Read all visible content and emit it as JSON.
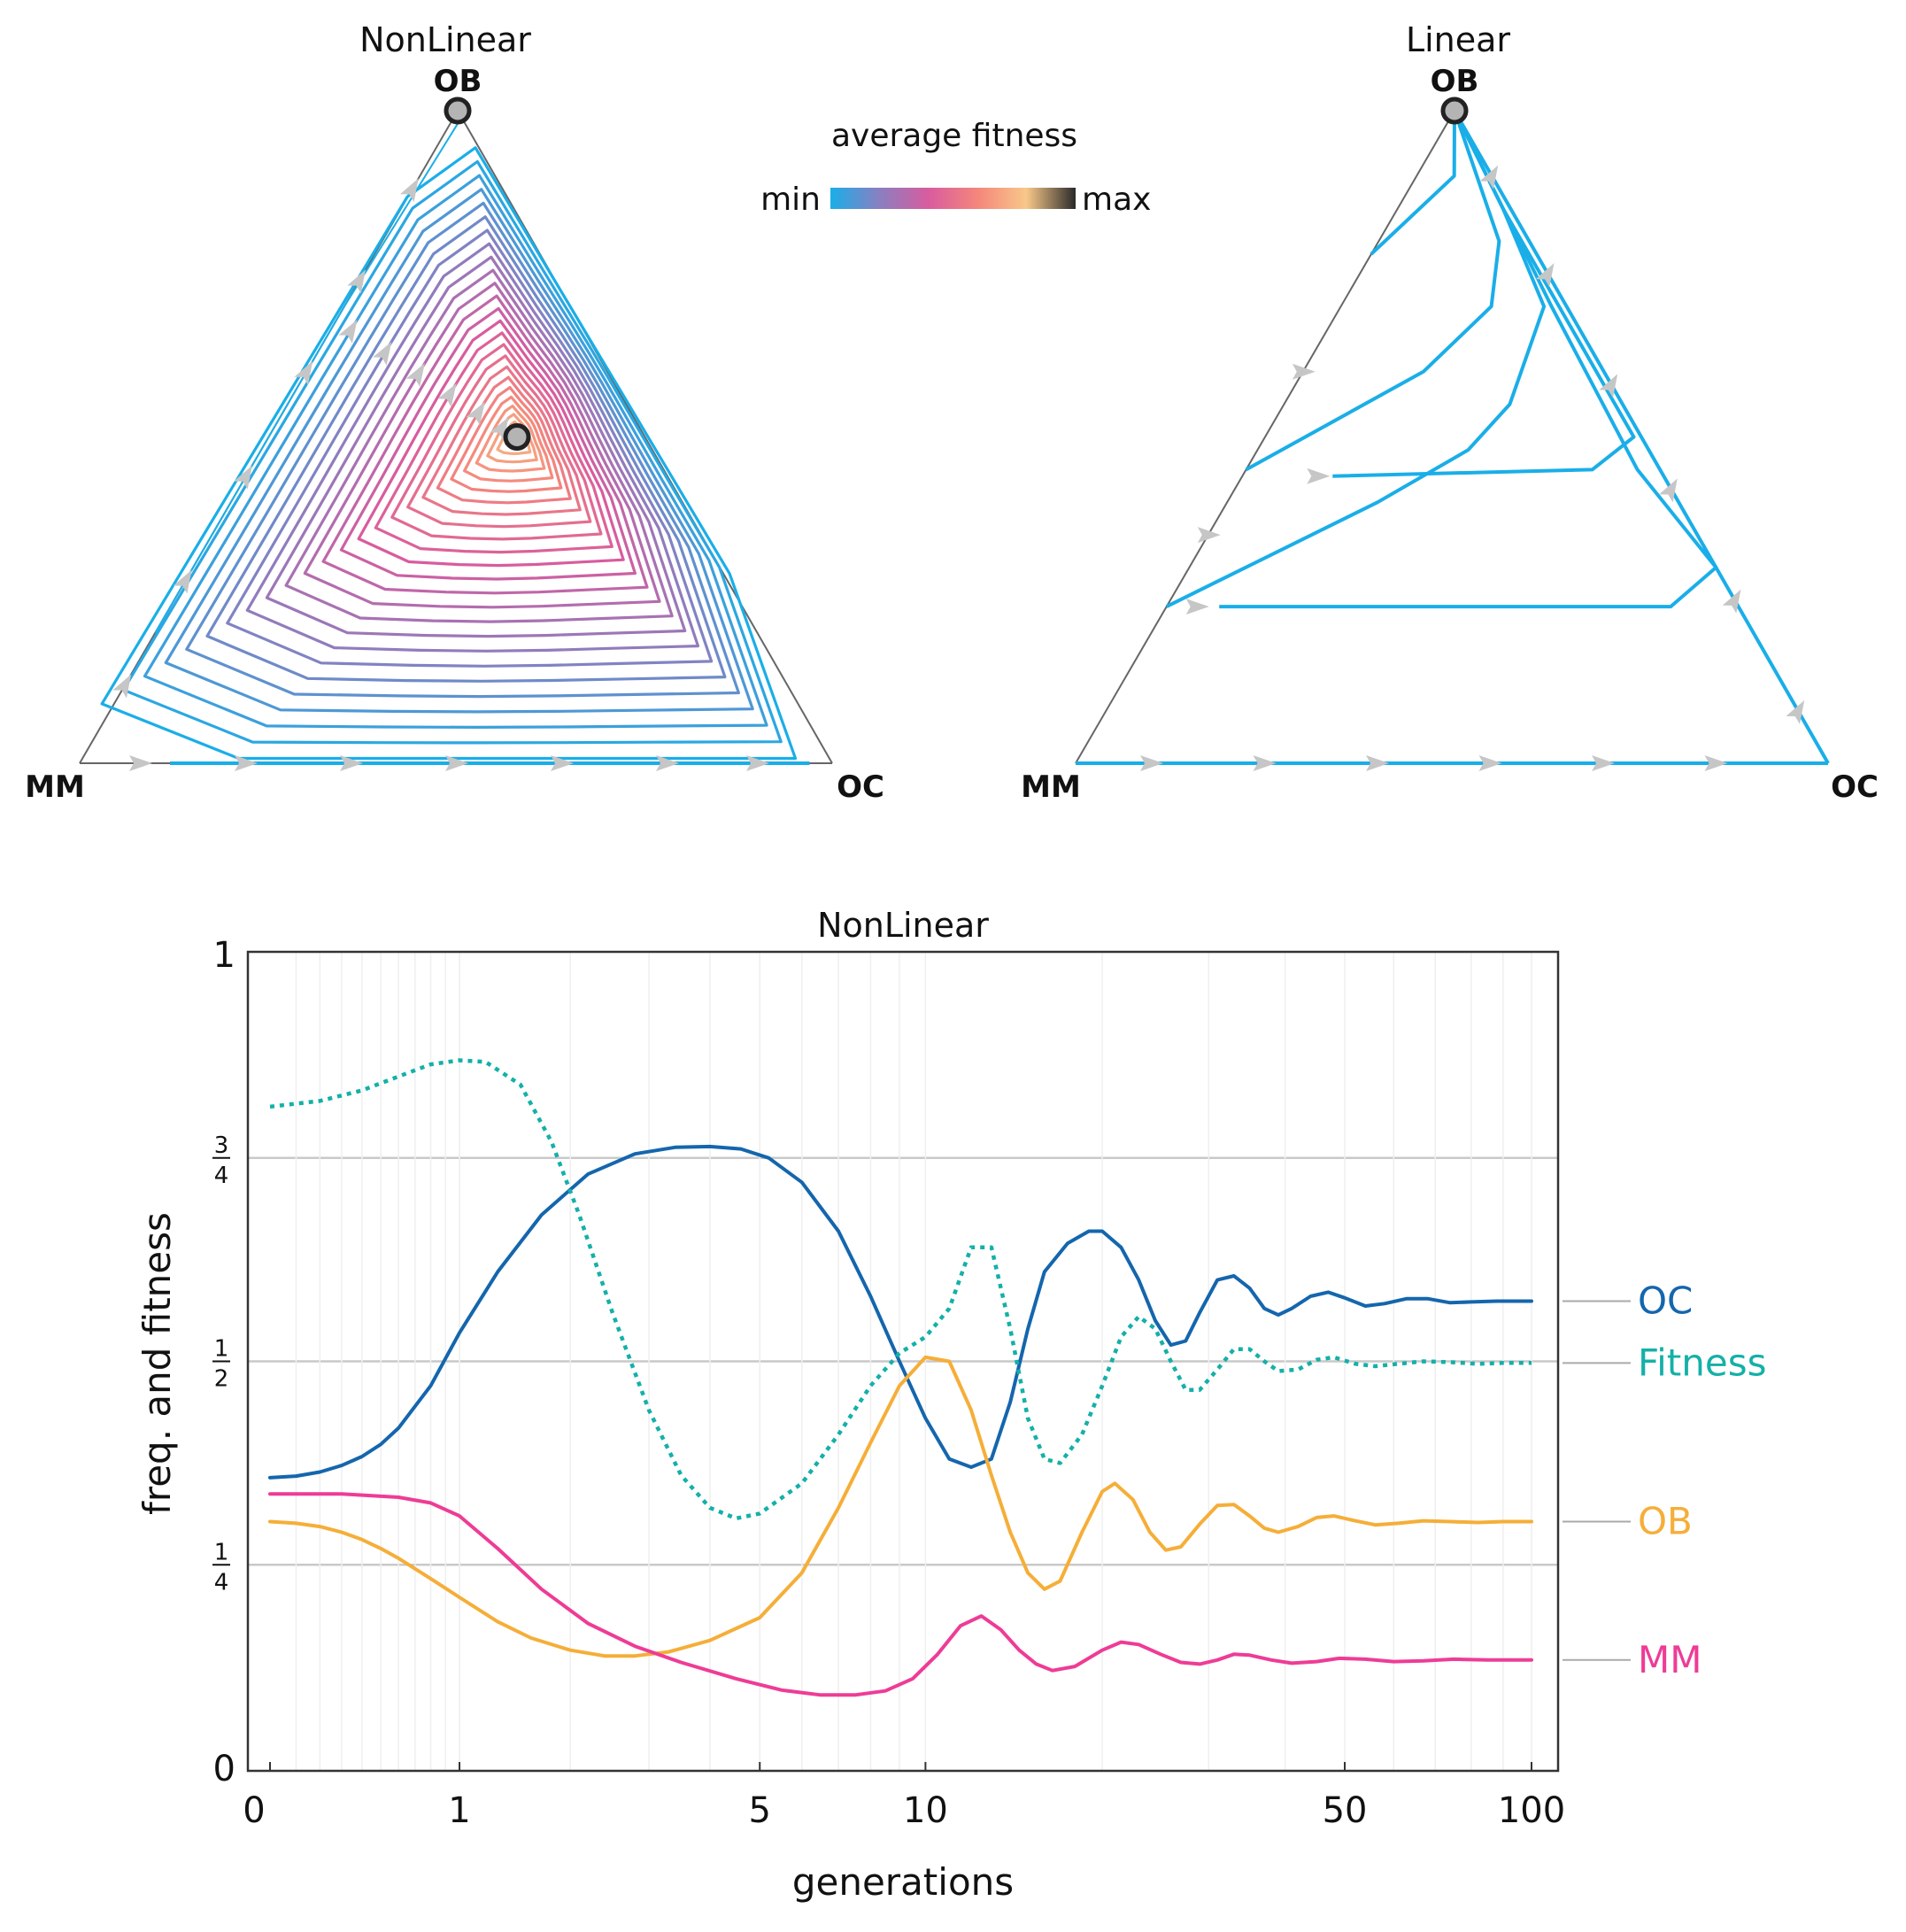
{
  "colorbar": {
    "title": "average fitness",
    "min_label": "min",
    "max_label": "max",
    "stops": [
      "#1aaee8",
      "#8a7fc0",
      "#d85c9e",
      "#f4867c",
      "#f8c889",
      "#2a2a2a"
    ]
  },
  "nonlinear_simplex": {
    "title": "NonLinear",
    "top_vertex": "OB",
    "left_vertex": "MM",
    "right_vertex": "OC",
    "interior_equilibrium": {
      "OB": 0.5,
      "OC": 0.33,
      "MM": 0.17
    }
  },
  "linear_simplex": {
    "title": "Linear",
    "top_vertex": "OB",
    "left_vertex": "MM",
    "right_vertex": "OC"
  },
  "chart_data": {
    "type": "line",
    "title": "NonLinear",
    "xlabel": "generations",
    "ylabel": "freq. and fitness",
    "xscale": "log(1+x)",
    "xlim": [
      0,
      100
    ],
    "ylim": [
      0,
      1
    ],
    "x_ticks": [
      "0",
      "1",
      "5",
      "10",
      "50",
      "100"
    ],
    "x_tick_values": [
      0,
      1,
      5,
      10,
      50,
      100
    ],
    "y_ticks": [
      {
        "value": 0,
        "label": "0"
      },
      {
        "value": 1,
        "label": "1"
      }
    ],
    "y_fraction_ticks": [
      {
        "value": 0.25,
        "num": "1",
        "den": "4"
      },
      {
        "value": 0.5,
        "num": "1",
        "den": "2"
      },
      {
        "value": 0.75,
        "num": "3",
        "den": "4"
      }
    ],
    "gridlines_y": [
      0.25,
      0.5,
      0.75
    ],
    "series": [
      {
        "name": "OC",
        "color": "#1466ad",
        "style": "solid",
        "points": [
          [
            0,
            0.357
          ],
          [
            0.1,
            0.359
          ],
          [
            0.2,
            0.364
          ],
          [
            0.3,
            0.372
          ],
          [
            0.4,
            0.383
          ],
          [
            0.5,
            0.398
          ],
          [
            0.6,
            0.418
          ],
          [
            0.8,
            0.47
          ],
          [
            1.0,
            0.535
          ],
          [
            1.3,
            0.61
          ],
          [
            1.7,
            0.68
          ],
          [
            2.2,
            0.73
          ],
          [
            2.8,
            0.755
          ],
          [
            3.4,
            0.763
          ],
          [
            4.0,
            0.764
          ],
          [
            4.6,
            0.761
          ],
          [
            5.2,
            0.75
          ],
          [
            6.0,
            0.72
          ],
          [
            7.0,
            0.66
          ],
          [
            8.0,
            0.58
          ],
          [
            9.0,
            0.5
          ],
          [
            10.0,
            0.43
          ],
          [
            11.0,
            0.38
          ],
          [
            12.0,
            0.37
          ],
          [
            13.0,
            0.38
          ],
          [
            14.0,
            0.45
          ],
          [
            15.0,
            0.54
          ],
          [
            16.0,
            0.61
          ],
          [
            17.5,
            0.645
          ],
          [
            19.0,
            0.66
          ],
          [
            20.0,
            0.66
          ],
          [
            21.5,
            0.64
          ],
          [
            23.0,
            0.6
          ],
          [
            24.5,
            0.55
          ],
          [
            26.0,
            0.52
          ],
          [
            27.5,
            0.525
          ],
          [
            29.0,
            0.56
          ],
          [
            31.0,
            0.6
          ],
          [
            33.0,
            0.605
          ],
          [
            35.0,
            0.59
          ],
          [
            37.0,
            0.565
          ],
          [
            39.0,
            0.557
          ],
          [
            41.0,
            0.565
          ],
          [
            44.0,
            0.58
          ],
          [
            47.0,
            0.585
          ],
          [
            50.0,
            0.578
          ],
          [
            54.0,
            0.568
          ],
          [
            58.0,
            0.571
          ],
          [
            63.0,
            0.577
          ],
          [
            68.0,
            0.577
          ],
          [
            74.0,
            0.572
          ],
          [
            80.0,
            0.573
          ],
          [
            88.0,
            0.574
          ],
          [
            100.0,
            0.574
          ]
        ]
      },
      {
        "name": "Fitness",
        "color": "#14b0a8",
        "style": "dotted",
        "points": [
          [
            0,
            0.813
          ],
          [
            0.2,
            0.82
          ],
          [
            0.4,
            0.833
          ],
          [
            0.6,
            0.85
          ],
          [
            0.8,
            0.865
          ],
          [
            1.0,
            0.87
          ],
          [
            1.2,
            0.868
          ],
          [
            1.5,
            0.84
          ],
          [
            1.8,
            0.77
          ],
          [
            2.1,
            0.68
          ],
          [
            2.5,
            0.56
          ],
          [
            3.0,
            0.44
          ],
          [
            3.5,
            0.36
          ],
          [
            4.0,
            0.32
          ],
          [
            4.5,
            0.307
          ],
          [
            5.0,
            0.313
          ],
          [
            6.0,
            0.35
          ],
          [
            7.0,
            0.41
          ],
          [
            8.0,
            0.47
          ],
          [
            9.0,
            0.51
          ],
          [
            10.0,
            0.53
          ],
          [
            11.0,
            0.565
          ],
          [
            12.0,
            0.64
          ],
          [
            13.0,
            0.64
          ],
          [
            14.0,
            0.54
          ],
          [
            15.0,
            0.43
          ],
          [
            16.0,
            0.38
          ],
          [
            17.0,
            0.375
          ],
          [
            18.5,
            0.41
          ],
          [
            20.0,
            0.47
          ],
          [
            21.5,
            0.53
          ],
          [
            23.0,
            0.555
          ],
          [
            24.5,
            0.54
          ],
          [
            26.0,
            0.5
          ],
          [
            27.5,
            0.465
          ],
          [
            29.0,
            0.465
          ],
          [
            31.0,
            0.49
          ],
          [
            33.0,
            0.515
          ],
          [
            35.0,
            0.515
          ],
          [
            37.0,
            0.5
          ],
          [
            39.0,
            0.488
          ],
          [
            42.0,
            0.49
          ],
          [
            45.0,
            0.502
          ],
          [
            48.0,
            0.505
          ],
          [
            52.0,
            0.497
          ],
          [
            56.0,
            0.494
          ],
          [
            61.0,
            0.497
          ],
          [
            67.0,
            0.5
          ],
          [
            74.0,
            0.499
          ],
          [
            82.0,
            0.497
          ],
          [
            90.0,
            0.498
          ],
          [
            100.0,
            0.498
          ]
        ]
      },
      {
        "name": "OB",
        "color": "#f5ae38",
        "style": "solid",
        "points": [
          [
            0,
            0.303
          ],
          [
            0.1,
            0.301
          ],
          [
            0.2,
            0.297
          ],
          [
            0.3,
            0.29
          ],
          [
            0.4,
            0.281
          ],
          [
            0.5,
            0.27
          ],
          [
            0.6,
            0.258
          ],
          [
            0.8,
            0.233
          ],
          [
            1.0,
            0.21
          ],
          [
            1.3,
            0.18
          ],
          [
            1.6,
            0.16
          ],
          [
            2.0,
            0.145
          ],
          [
            2.4,
            0.138
          ],
          [
            2.8,
            0.138
          ],
          [
            3.3,
            0.143
          ],
          [
            4.0,
            0.157
          ],
          [
            5.0,
            0.185
          ],
          [
            6.0,
            0.24
          ],
          [
            7.0,
            0.32
          ],
          [
            8.0,
            0.4
          ],
          [
            9.0,
            0.47
          ],
          [
            10.0,
            0.505
          ],
          [
            11.0,
            0.5
          ],
          [
            12.0,
            0.44
          ],
          [
            13.0,
            0.36
          ],
          [
            14.0,
            0.29
          ],
          [
            15.0,
            0.24
          ],
          [
            16.0,
            0.22
          ],
          [
            17.0,
            0.23
          ],
          [
            18.5,
            0.29
          ],
          [
            20.0,
            0.34
          ],
          [
            21.0,
            0.35
          ],
          [
            22.5,
            0.33
          ],
          [
            24.0,
            0.29
          ],
          [
            25.5,
            0.268
          ],
          [
            27.0,
            0.272
          ],
          [
            29.0,
            0.3
          ],
          [
            31.0,
            0.323
          ],
          [
            33.0,
            0.324
          ],
          [
            35.0,
            0.31
          ],
          [
            37.0,
            0.295
          ],
          [
            39.0,
            0.29
          ],
          [
            42.0,
            0.297
          ],
          [
            45.0,
            0.308
          ],
          [
            48.0,
            0.31
          ],
          [
            52.0,
            0.304
          ],
          [
            56.0,
            0.299
          ],
          [
            61.0,
            0.301
          ],
          [
            67.0,
            0.304
          ],
          [
            74.0,
            0.303
          ],
          [
            82.0,
            0.302
          ],
          [
            90.0,
            0.303
          ],
          [
            100.0,
            0.303
          ]
        ]
      },
      {
        "name": "MM",
        "color": "#ee3c96",
        "style": "solid",
        "points": [
          [
            0,
            0.337
          ],
          [
            0.3,
            0.337
          ],
          [
            0.6,
            0.333
          ],
          [
            0.8,
            0.326
          ],
          [
            1.0,
            0.31
          ],
          [
            1.3,
            0.27
          ],
          [
            1.7,
            0.22
          ],
          [
            2.2,
            0.178
          ],
          [
            2.8,
            0.15
          ],
          [
            3.5,
            0.13
          ],
          [
            4.5,
            0.11
          ],
          [
            5.5,
            0.096
          ],
          [
            6.5,
            0.09
          ],
          [
            7.5,
            0.09
          ],
          [
            8.5,
            0.095
          ],
          [
            9.5,
            0.11
          ],
          [
            10.5,
            0.14
          ],
          [
            11.5,
            0.175
          ],
          [
            12.5,
            0.187
          ],
          [
            13.5,
            0.17
          ],
          [
            14.5,
            0.145
          ],
          [
            15.5,
            0.128
          ],
          [
            16.5,
            0.12
          ],
          [
            18.0,
            0.125
          ],
          [
            20.0,
            0.145
          ],
          [
            21.5,
            0.155
          ],
          [
            23.0,
            0.152
          ],
          [
            25.0,
            0.14
          ],
          [
            27.0,
            0.13
          ],
          [
            29.0,
            0.128
          ],
          [
            31.0,
            0.133
          ],
          [
            33.0,
            0.14
          ],
          [
            35.0,
            0.139
          ],
          [
            38.0,
            0.133
          ],
          [
            41.0,
            0.129
          ],
          [
            45.0,
            0.131
          ],
          [
            49.0,
            0.135
          ],
          [
            54.0,
            0.134
          ],
          [
            60.0,
            0.131
          ],
          [
            67.0,
            0.132
          ],
          [
            75.0,
            0.134
          ],
          [
            85.0,
            0.133
          ],
          [
            100.0,
            0.133
          ]
        ]
      }
    ]
  }
}
